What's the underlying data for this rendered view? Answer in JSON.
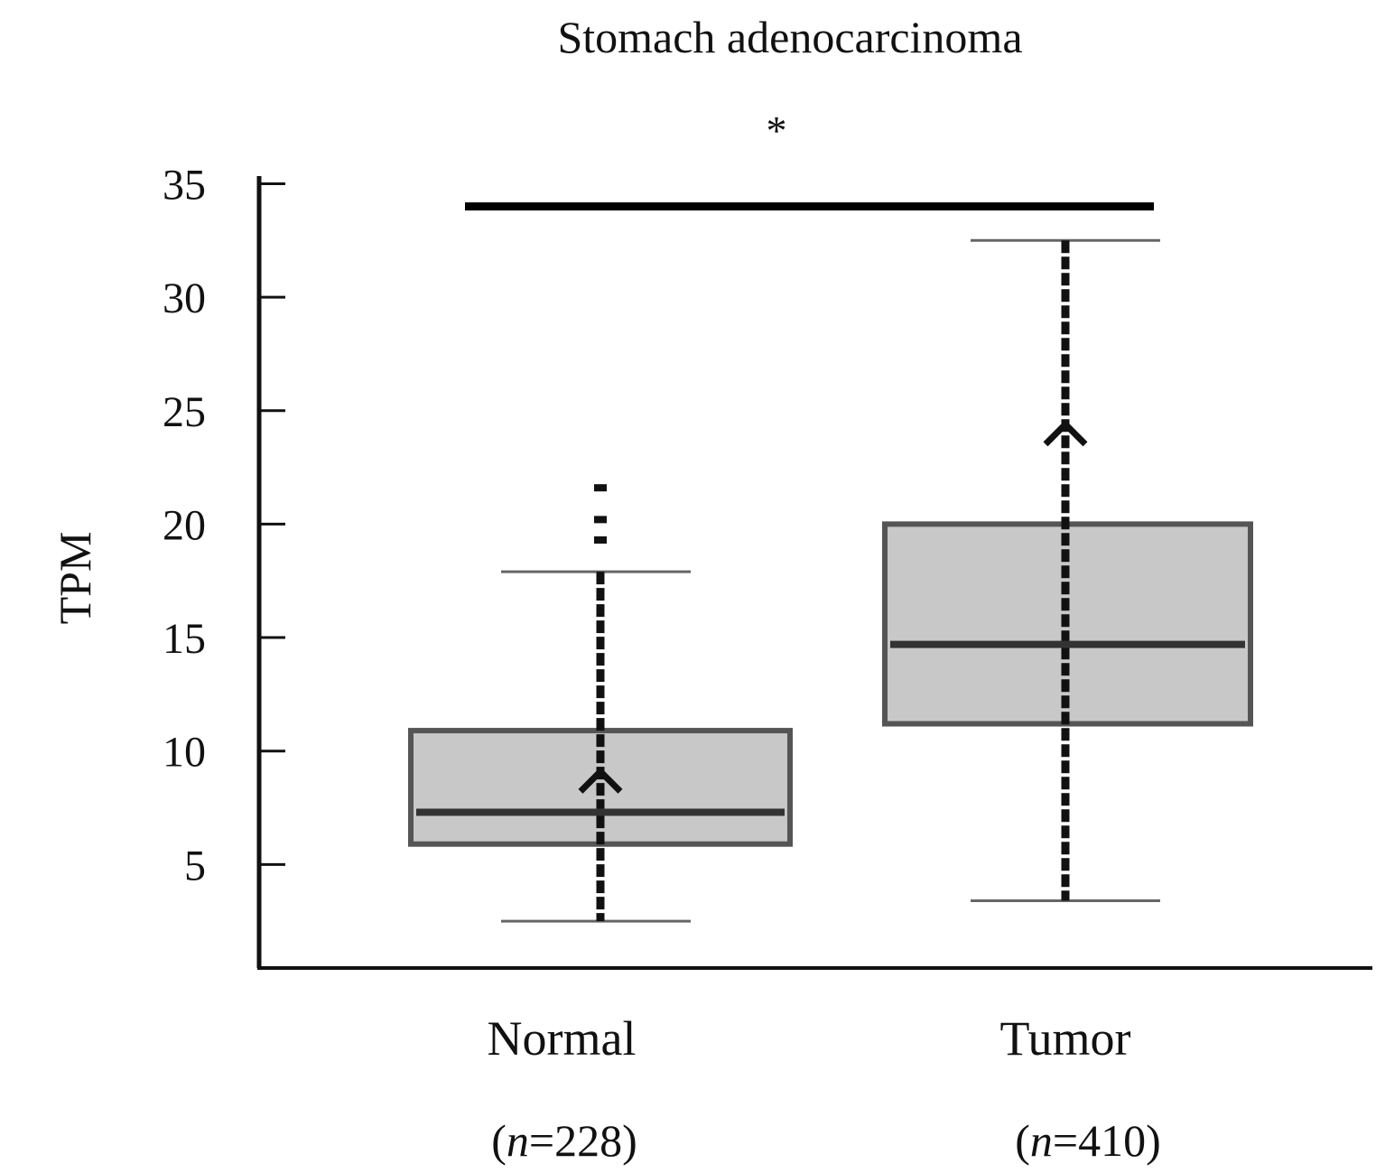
{
  "chart_data": {
    "type": "box",
    "title": "Stomach adenocarcinoma",
    "significance_label": "*",
    "significance_level_tpm": 34,
    "ylabel": "TPM",
    "xlabel": "",
    "ylim": [
      0.4,
      36
    ],
    "yticks": [
      5,
      10,
      15,
      20,
      25,
      30,
      35
    ],
    "grid": false,
    "groups": [
      {
        "name": "Normal",
        "n_label": "(n=228)",
        "n_prefix": "(",
        "n_italic": "n",
        "n_suffix": "=228)",
        "whisker_low": 2.5,
        "q1": 5.9,
        "median": 7.3,
        "q3": 10.9,
        "whisker_high": 17.9,
        "mean": 8.7,
        "outliers": [
          19.3,
          20.2,
          21.6
        ],
        "point_range": [
          2.5,
          17.9
        ]
      },
      {
        "name": "Tumor",
        "n_label": "(n=410)",
        "n_prefix": "(",
        "n_italic": "n",
        "n_suffix": "=410)",
        "whisker_low": 3.4,
        "q1": 11.2,
        "median": 14.7,
        "q3": 20.0,
        "whisker_high": 32.5,
        "mean": 24.0,
        "outliers": [],
        "point_range": [
          3.4,
          32.5
        ]
      }
    ],
    "colors": {
      "box_fill": "#c8c8c8",
      "box_edge": "#555555",
      "points": "#111111",
      "axis": "#111111"
    }
  }
}
